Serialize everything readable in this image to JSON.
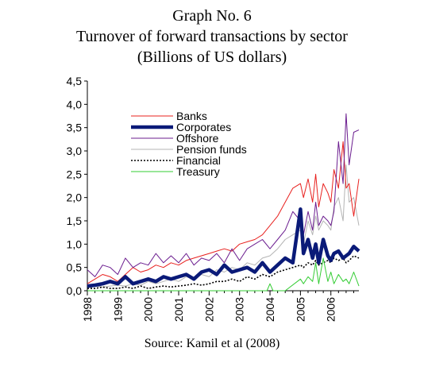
{
  "header": {
    "graph_no": "Graph No. 6",
    "title": "Turnover of forward transactions by sector",
    "subtitle": "(Billions of US dollars)"
  },
  "footer": {
    "source": "Source: Kamil et al (2008)"
  },
  "chart_data": {
    "type": "line",
    "title": "Turnover of forward transactions by sector",
    "subtitle": "(Billions of US dollars)",
    "ylim": [
      0,
      4.5
    ],
    "yticks": [
      "0,0",
      "0,5",
      "1,0",
      "1,5",
      "2,0",
      "2,5",
      "3,0",
      "3,5",
      "4,0",
      "4,5"
    ],
    "xlim": [
      1998.0,
      2006.92
    ],
    "xticks": [
      "1998",
      "1999",
      "2000",
      "2001",
      "2002",
      "2003",
      "2004",
      "2005",
      "2006"
    ],
    "grid": false,
    "legend_position": "top-left inside",
    "series": [
      {
        "name": "Banks",
        "color": "#e8201e",
        "dash": "",
        "width": 1,
        "x": [
          1998.0,
          1998.25,
          1998.5,
          1998.75,
          1999.0,
          1999.25,
          1999.5,
          1999.75,
          2000.0,
          2000.25,
          2000.5,
          2000.75,
          2001.0,
          2001.25,
          2001.5,
          2001.75,
          2002.0,
          2002.25,
          2002.5,
          2002.75,
          2003.0,
          2003.25,
          2003.5,
          2003.75,
          2004.0,
          2004.25,
          2004.5,
          2004.75,
          2005.0,
          2005.1,
          2005.25,
          2005.4,
          2005.5,
          2005.6,
          2005.75,
          2005.9,
          2006.0,
          2006.1,
          2006.25,
          2006.4,
          2006.5,
          2006.6,
          2006.75,
          2006.92
        ],
        "values": [
          0.15,
          0.25,
          0.35,
          0.3,
          0.2,
          0.35,
          0.5,
          0.4,
          0.45,
          0.55,
          0.5,
          0.6,
          0.55,
          0.65,
          0.7,
          0.75,
          0.8,
          0.85,
          0.9,
          0.85,
          1.0,
          1.05,
          1.1,
          1.2,
          1.4,
          1.6,
          1.9,
          2.2,
          2.3,
          2.0,
          2.4,
          1.9,
          2.5,
          1.8,
          2.3,
          2.1,
          1.9,
          2.6,
          2.2,
          3.2,
          2.2,
          2.3,
          1.6,
          2.4
        ]
      },
      {
        "name": "Corporates",
        "color": "#0a1a78",
        "dash": "",
        "width": 4.5,
        "x": [
          1998.0,
          1998.25,
          1998.5,
          1998.75,
          1999.0,
          1999.25,
          1999.5,
          1999.75,
          2000.0,
          2000.25,
          2000.5,
          2000.75,
          2001.0,
          2001.25,
          2001.5,
          2001.75,
          2002.0,
          2002.25,
          2002.5,
          2002.75,
          2003.0,
          2003.25,
          2003.5,
          2003.75,
          2004.0,
          2004.25,
          2004.5,
          2004.75,
          2005.0,
          2005.1,
          2005.25,
          2005.4,
          2005.5,
          2005.6,
          2005.75,
          2005.9,
          2006.0,
          2006.1,
          2006.25,
          2006.4,
          2006.5,
          2006.6,
          2006.75,
          2006.92
        ],
        "values": [
          0.1,
          0.12,
          0.15,
          0.2,
          0.15,
          0.3,
          0.15,
          0.2,
          0.25,
          0.2,
          0.3,
          0.25,
          0.3,
          0.35,
          0.25,
          0.4,
          0.45,
          0.35,
          0.55,
          0.4,
          0.45,
          0.5,
          0.4,
          0.6,
          0.4,
          0.55,
          0.7,
          0.6,
          1.75,
          0.8,
          1.1,
          0.7,
          1.0,
          0.6,
          1.1,
          0.75,
          0.65,
          0.8,
          0.85,
          0.7,
          0.75,
          0.8,
          0.95,
          0.85
        ]
      },
      {
        "name": "Offshore",
        "color": "#6b1d8f",
        "dash": "",
        "width": 1,
        "x": [
          1998.0,
          1998.25,
          1998.5,
          1998.75,
          1999.0,
          1999.25,
          1999.5,
          1999.75,
          2000.0,
          2000.25,
          2000.5,
          2000.75,
          2001.0,
          2001.25,
          2001.5,
          2001.75,
          2002.0,
          2002.25,
          2002.5,
          2002.75,
          2003.0,
          2003.25,
          2003.5,
          2003.75,
          2004.0,
          2004.25,
          2004.5,
          2004.75,
          2005.0,
          2005.1,
          2005.25,
          2005.4,
          2005.5,
          2005.6,
          2005.75,
          2005.9,
          2006.0,
          2006.1,
          2006.25,
          2006.4,
          2006.5,
          2006.6,
          2006.75,
          2006.92
        ],
        "values": [
          0.45,
          0.3,
          0.55,
          0.5,
          0.35,
          0.7,
          0.5,
          0.6,
          0.55,
          0.8,
          0.6,
          0.75,
          0.6,
          0.8,
          0.55,
          0.7,
          0.65,
          0.8,
          0.6,
          0.9,
          0.65,
          0.9,
          1.0,
          1.1,
          0.9,
          1.1,
          1.3,
          1.7,
          1.5,
          1.2,
          1.7,
          1.3,
          1.9,
          1.4,
          1.6,
          1.5,
          1.4,
          1.7,
          3.2,
          2.3,
          3.8,
          2.7,
          3.4,
          3.45
        ]
      },
      {
        "name": "Pension funds",
        "color": "#b4b4b4",
        "dash": "",
        "width": 1,
        "x": [
          1998.0,
          1998.25,
          1998.5,
          1998.75,
          1999.0,
          1999.25,
          1999.5,
          1999.75,
          2000.0,
          2000.25,
          2000.5,
          2000.75,
          2001.0,
          2001.25,
          2001.5,
          2001.75,
          2002.0,
          2002.25,
          2002.5,
          2002.75,
          2003.0,
          2003.25,
          2003.5,
          2003.75,
          2004.0,
          2004.25,
          2004.5,
          2004.75,
          2005.0,
          2005.1,
          2005.25,
          2005.4,
          2005.5,
          2005.6,
          2005.75,
          2005.9,
          2006.0,
          2006.1,
          2006.25,
          2006.4,
          2006.5,
          2006.6,
          2006.75,
          2006.92
        ],
        "values": [
          0.05,
          0.1,
          0.08,
          0.1,
          0.12,
          0.1,
          0.15,
          0.12,
          0.2,
          0.15,
          0.2,
          0.25,
          0.2,
          0.3,
          0.25,
          0.35,
          0.3,
          0.45,
          0.4,
          0.5,
          0.45,
          0.6,
          0.55,
          0.7,
          0.75,
          0.9,
          1.1,
          1.2,
          1.3,
          1.0,
          1.5,
          1.2,
          1.6,
          1.3,
          1.5,
          1.4,
          1.3,
          1.8,
          2.0,
          1.5,
          2.7,
          1.9,
          2.0,
          1.4
        ]
      },
      {
        "name": "Financial",
        "color": "#000000",
        "dash": "2,2",
        "width": 1.6,
        "x": [
          1998.0,
          1998.25,
          1998.5,
          1998.75,
          1999.0,
          1999.25,
          1999.5,
          1999.75,
          2000.0,
          2000.25,
          2000.5,
          2000.75,
          2001.0,
          2001.25,
          2001.5,
          2001.75,
          2002.0,
          2002.25,
          2002.5,
          2002.75,
          2003.0,
          2003.25,
          2003.5,
          2003.75,
          2004.0,
          2004.25,
          2004.5,
          2004.75,
          2005.0,
          2005.1,
          2005.25,
          2005.4,
          2005.5,
          2005.6,
          2005.75,
          2005.9,
          2006.0,
          2006.1,
          2006.25,
          2006.4,
          2006.5,
          2006.6,
          2006.75,
          2006.92
        ],
        "values": [
          0.05,
          0.05,
          0.08,
          0.05,
          0.05,
          0.08,
          0.05,
          0.1,
          0.05,
          0.08,
          0.1,
          0.08,
          0.1,
          0.12,
          0.15,
          0.12,
          0.15,
          0.2,
          0.2,
          0.25,
          0.2,
          0.3,
          0.25,
          0.35,
          0.3,
          0.4,
          0.45,
          0.5,
          0.55,
          0.5,
          0.6,
          0.55,
          0.65,
          0.55,
          0.6,
          0.65,
          0.6,
          0.7,
          0.65,
          0.7,
          0.6,
          0.65,
          0.75,
          0.7
        ]
      },
      {
        "name": "Treasury",
        "color": "#33cc33",
        "dash": "",
        "width": 1,
        "x": [
          1998.0,
          1998.5,
          1999.0,
          1999.5,
          2000.0,
          2000.5,
          2001.0,
          2001.5,
          2002.0,
          2002.5,
          2003.0,
          2003.5,
          2003.9,
          2004.0,
          2004.1,
          2004.5,
          2005.0,
          2005.1,
          2005.25,
          2005.4,
          2005.5,
          2005.6,
          2005.75,
          2005.9,
          2006.0,
          2006.1,
          2006.25,
          2006.4,
          2006.5,
          2006.6,
          2006.75,
          2006.92
        ],
        "values": [
          0,
          0,
          0,
          0,
          0,
          0,
          0,
          0,
          0,
          0,
          0,
          0,
          0,
          0.15,
          0,
          0,
          0.25,
          0.15,
          0.3,
          0.2,
          0.6,
          0.15,
          0.7,
          0.2,
          0.4,
          0.15,
          0.35,
          0.2,
          0.25,
          0.15,
          0.4,
          0.1
        ]
      }
    ]
  }
}
